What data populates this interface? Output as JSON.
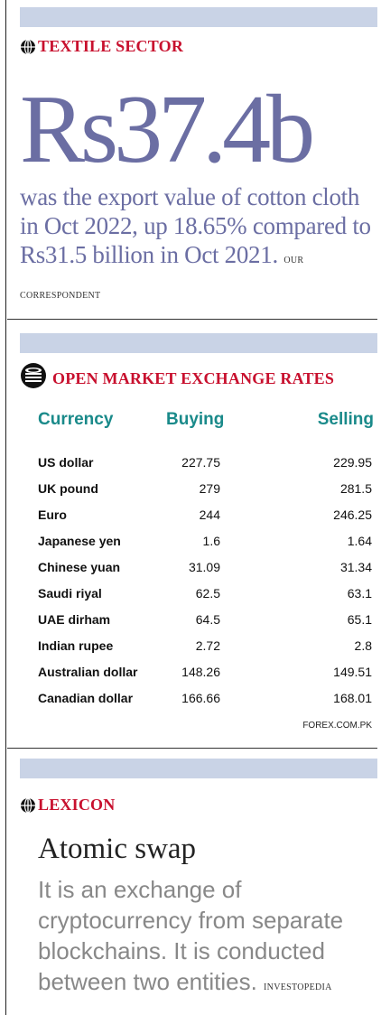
{
  "textile": {
    "kicker": "TEXTILE SECTOR",
    "headline_value": "Rs37.4b",
    "lead_text": "was the export value of cotton cloth in Oct 2022, up 18.65% compared to Rs31.5 billion in Oct 2021.",
    "credit": "OUR CORRESPONDENT"
  },
  "exchange": {
    "kicker": "OPEN MARKET EXCHANGE RATES",
    "headers": {
      "currency": "Currency",
      "buying": "Buying",
      "selling": "Selling"
    },
    "rows": [
      {
        "currency": "US dollar",
        "buying": "227.75",
        "selling": "229.95"
      },
      {
        "currency": "UK pound",
        "buying": "279",
        "selling": "281.5"
      },
      {
        "currency": "Euro",
        "buying": "244",
        "selling": "246.25"
      },
      {
        "currency": "Japanese yen",
        "buying": "1.6",
        "selling": "1.64"
      },
      {
        "currency": "Chinese yuan",
        "buying": "31.09",
        "selling": "31.34"
      },
      {
        "currency": "Saudi riyal",
        "buying": "62.5",
        "selling": "63.1"
      },
      {
        "currency": "UAE dirham",
        "buying": "64.5",
        "selling": "65.1"
      },
      {
        "currency": "Indian rupee",
        "buying": "2.72",
        "selling": "2.8"
      },
      {
        "currency": "Australian dollar",
        "buying": "148.26",
        "selling": "149.51"
      },
      {
        "currency": "Canadian dollar",
        "buying": "166.66",
        "selling": "168.01"
      }
    ],
    "source": "FOREX.COM.PK"
  },
  "lexicon": {
    "kicker": "LEXICON",
    "term": "Atomic swap",
    "definition": "It is an exchange of cryptocurrency from separate blockchains. It is conducted between two entities.",
    "credit": "INVESTOPEDIA"
  },
  "colors": {
    "accent_red": "#c8102e",
    "headline_blue": "#6b6ea3",
    "band_blue": "#c9d3e6",
    "table_header_teal": "#1a8a8a"
  }
}
